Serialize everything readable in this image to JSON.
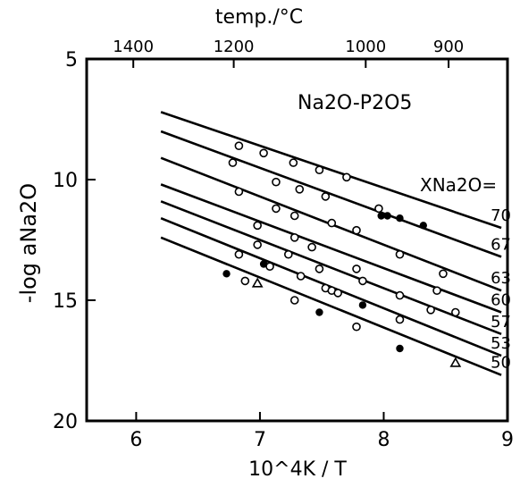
{
  "chart_data": {
    "type": "line",
    "title": "Na2O-P2O5",
    "xlabel": "10^4K / T",
    "ylabel": "-log aNa2O",
    "x2label": "temp./°C",
    "legend_title": "XNa2O=",
    "xlim": [
      5.6,
      9.0
    ],
    "ylim": [
      5,
      20
    ],
    "y_reversed": true,
    "x_ticks": [
      "6",
      "7",
      "8",
      "9"
    ],
    "y_ticks": [
      "5",
      "10",
      "15",
      "20"
    ],
    "top_ticks": [
      {
        "label": "1400",
        "celsius": 1400
      },
      {
        "label": "1200",
        "celsius": 1200
      },
      {
        "label": "1000",
        "celsius": 1000
      },
      {
        "label": "900",
        "celsius": 900
      }
    ],
    "series": [
      {
        "name": "70",
        "line": [
          [
            6.2,
            7.2
          ],
          [
            8.95,
            12.0
          ]
        ],
        "points": [
          {
            "x": 6.83,
            "y": 8.6,
            "f": "o"
          },
          {
            "x": 7.03,
            "y": 8.9,
            "f": "o"
          },
          {
            "x": 7.27,
            "y": 9.3,
            "f": "o"
          },
          {
            "x": 7.48,
            "y": 9.6,
            "f": "o"
          },
          {
            "x": 7.7,
            "y": 9.9,
            "f": "o"
          }
        ]
      },
      {
        "name": "67",
        "line": [
          [
            6.2,
            8.0
          ],
          [
            8.95,
            13.2
          ]
        ],
        "points": [
          {
            "x": 6.78,
            "y": 9.3,
            "f": "o"
          },
          {
            "x": 7.13,
            "y": 10.1,
            "f": "o"
          },
          {
            "x": 7.32,
            "y": 10.4,
            "f": "o"
          },
          {
            "x": 7.53,
            "y": 10.7,
            "f": "o"
          },
          {
            "x": 7.96,
            "y": 11.2,
            "f": "o"
          },
          {
            "x": 7.98,
            "y": 11.5,
            "f": "●"
          },
          {
            "x": 8.03,
            "y": 11.5,
            "f": "●"
          },
          {
            "x": 8.13,
            "y": 11.6,
            "f": "●"
          },
          {
            "x": 8.32,
            "y": 11.9,
            "f": "●"
          }
        ]
      },
      {
        "name": "63",
        "line": [
          [
            6.2,
            9.1
          ],
          [
            8.95,
            14.6
          ]
        ],
        "points": [
          {
            "x": 6.83,
            "y": 10.5,
            "f": "o"
          },
          {
            "x": 7.13,
            "y": 11.2,
            "f": "o"
          },
          {
            "x": 7.28,
            "y": 11.5,
            "f": "o"
          },
          {
            "x": 7.58,
            "y": 11.8,
            "f": "o"
          },
          {
            "x": 7.78,
            "y": 12.1,
            "f": "o"
          },
          {
            "x": 8.13,
            "y": 13.1,
            "f": "o"
          },
          {
            "x": 8.48,
            "y": 13.9,
            "f": "o"
          }
        ]
      },
      {
        "name": "60",
        "line": [
          [
            6.2,
            10.2
          ],
          [
            8.95,
            15.5
          ]
        ],
        "points": [
          {
            "x": 6.98,
            "y": 11.9,
            "f": "o"
          },
          {
            "x": 7.28,
            "y": 12.4,
            "f": "o"
          },
          {
            "x": 7.42,
            "y": 12.8,
            "f": "o"
          },
          {
            "x": 7.78,
            "y": 13.7,
            "f": "o"
          },
          {
            "x": 8.43,
            "y": 14.6,
            "f": "o"
          }
        ]
      },
      {
        "name": "57",
        "line": [
          [
            6.2,
            10.9
          ],
          [
            8.95,
            16.4
          ]
        ],
        "points": [
          {
            "x": 6.98,
            "y": 12.7,
            "f": "o"
          },
          {
            "x": 7.23,
            "y": 13.1,
            "f": "o"
          },
          {
            "x": 7.48,
            "y": 13.7,
            "f": "o"
          },
          {
            "x": 7.83,
            "y": 14.2,
            "f": "o"
          },
          {
            "x": 8.13,
            "y": 14.8,
            "f": "o"
          },
          {
            "x": 8.38,
            "y": 15.4,
            "f": "o"
          },
          {
            "x": 8.58,
            "y": 15.5,
            "f": "o"
          }
        ]
      },
      {
        "name": "53",
        "line": [
          [
            6.2,
            11.6
          ],
          [
            8.95,
            17.3
          ]
        ],
        "points": [
          {
            "x": 6.83,
            "y": 13.1,
            "f": "o"
          },
          {
            "x": 7.03,
            "y": 13.5,
            "f": "●"
          },
          {
            "x": 7.08,
            "y": 13.6,
            "f": "o"
          },
          {
            "x": 7.33,
            "y": 14.0,
            "f": "o"
          },
          {
            "x": 7.53,
            "y": 14.5,
            "f": "o"
          },
          {
            "x": 7.58,
            "y": 14.6,
            "f": "o"
          },
          {
            "x": 7.63,
            "y": 14.7,
            "f": "o"
          },
          {
            "x": 7.83,
            "y": 15.2,
            "f": "●"
          },
          {
            "x": 8.13,
            "y": 15.8,
            "f": "o"
          }
        ]
      },
      {
        "name": "50",
        "line": [
          [
            6.2,
            12.4
          ],
          [
            8.95,
            18.1
          ]
        ],
        "points": [
          {
            "x": 6.73,
            "y": 13.9,
            "f": "●"
          },
          {
            "x": 6.88,
            "y": 14.2,
            "f": "o"
          },
          {
            "x": 6.98,
            "y": 14.3,
            "f": "△"
          },
          {
            "x": 7.28,
            "y": 15.0,
            "f": "o"
          },
          {
            "x": 7.48,
            "y": 15.5,
            "f": "●"
          },
          {
            "x": 7.78,
            "y": 16.1,
            "f": "o"
          },
          {
            "x": 8.13,
            "y": 17.0,
            "f": "●"
          },
          {
            "x": 8.58,
            "y": 17.6,
            "f": "△"
          }
        ]
      }
    ],
    "grid": false
  }
}
